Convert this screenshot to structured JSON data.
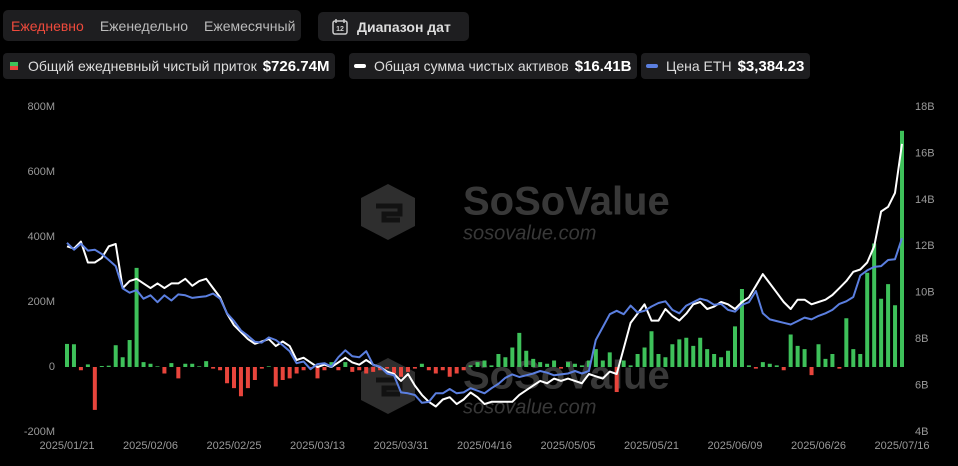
{
  "tabs": [
    "Ежедневно",
    "Еженедельно",
    "Ежемесячный"
  ],
  "active_tab": 0,
  "date_range_button": "Диапазон дат",
  "watermark": {
    "brand": "SoSoValue",
    "url": "sosovalue.com"
  },
  "chart_data": {
    "type": "bar",
    "categories": [
      "2025/01/21",
      null,
      null,
      null,
      null,
      null,
      null,
      null,
      null,
      null,
      null,
      null,
      "2025/02/06",
      null,
      null,
      null,
      null,
      null,
      null,
      null,
      null,
      null,
      null,
      null,
      "2025/02/25",
      null,
      null,
      null,
      null,
      null,
      null,
      null,
      null,
      null,
      null,
      null,
      "2025/03/13",
      null,
      null,
      null,
      null,
      null,
      null,
      null,
      null,
      null,
      null,
      null,
      "2025/03/31",
      null,
      null,
      null,
      null,
      null,
      null,
      null,
      null,
      null,
      null,
      null,
      "2025/04/16",
      null,
      null,
      null,
      null,
      null,
      null,
      null,
      null,
      null,
      null,
      null,
      "2025/05/05",
      null,
      null,
      null,
      null,
      null,
      null,
      null,
      null,
      null,
      null,
      null,
      "2025/05/21",
      null,
      null,
      null,
      null,
      null,
      null,
      null,
      null,
      null,
      null,
      null,
      "2025/06/09",
      null,
      null,
      null,
      null,
      null,
      null,
      null,
      null,
      null,
      null,
      null,
      "2025/06/26",
      null,
      null,
      null,
      null,
      null,
      null,
      null,
      null,
      null,
      null,
      null,
      "2025/07/16"
    ],
    "series": [
      {
        "name": "Общий ежедневный чистый приток",
        "type": "bar",
        "color": "#3ec15a",
        "negative_color": "#e8453c",
        "legend_value": "$726.74M",
        "values": [
          71,
          70,
          -10,
          8,
          -132,
          3,
          4,
          67,
          30,
          83,
          305,
          15,
          10,
          2,
          -20,
          12,
          -35,
          10,
          10,
          2,
          18,
          -5,
          -10,
          -50,
          -65,
          -90,
          -65,
          -40,
          -5,
          2,
          -60,
          -40,
          -35,
          -20,
          -10,
          -5,
          -35,
          -10,
          15,
          -10,
          15,
          -15,
          -10,
          -20,
          -15,
          -10,
          -5,
          -20,
          -30,
          -15,
          -5,
          10,
          -10,
          -20,
          -10,
          -30,
          -20,
          -10,
          5,
          15,
          20,
          5,
          40,
          30,
          60,
          105,
          50,
          25,
          15,
          10,
          20,
          -5,
          15,
          10,
          5,
          20,
          55,
          20,
          45,
          -77,
          20,
          5,
          40,
          60,
          110,
          40,
          30,
          70,
          85,
          90,
          65,
          90,
          55,
          40,
          30,
          50,
          125,
          240,
          5,
          -5,
          15,
          10,
          5,
          -10,
          100,
          65,
          55,
          -25,
          70,
          25,
          40,
          -5,
          150,
          55,
          40,
          290,
          380,
          210,
          255,
          190,
          726.74
        ]
      },
      {
        "name": "Общая сумма чистых активов",
        "type": "line",
        "axis": "y2",
        "color": "#ffffff",
        "legend_value": "$16.41B",
        "values": [
          12.0,
          11.9,
          12.2,
          11.3,
          11.3,
          11.5,
          12.0,
          12.1,
          10.2,
          10.5,
          10.6,
          10.4,
          10.2,
          10.4,
          10.2,
          10.4,
          10.4,
          10.6,
          10.3,
          10.5,
          10.6,
          10.2,
          9.8,
          9.1,
          8.6,
          8.3,
          8.0,
          7.8,
          7.9,
          8.0,
          7.7,
          7.9,
          7.7,
          7.1,
          7.2,
          7.0,
          6.8,
          6.9,
          6.8,
          7.0,
          7.2,
          7.0,
          6.9,
          7.1,
          6.9,
          6.8,
          6.6,
          6.5,
          6.2,
          6.5,
          6.0,
          5.6,
          5.3,
          5.1,
          5.4,
          5.5,
          5.2,
          5.4,
          5.7,
          5.5,
          5.2,
          5.3,
          5.3,
          5.3,
          5.3,
          5.6,
          5.8,
          6.0,
          6.2,
          6.1,
          6.3,
          6.2,
          6.3,
          6.2,
          6.1,
          6.5,
          6.4,
          6.3,
          6.6,
          6.5,
          7.6,
          8.7,
          9.1,
          9.5,
          8.8,
          8.8,
          9.3,
          9.0,
          8.8,
          9.1,
          9.5,
          9.6,
          9.3,
          9.4,
          9.6,
          9.5,
          9.3,
          9.6,
          9.8,
          10.3,
          10.8,
          10.4,
          10.0,
          9.6,
          9.3,
          9.7,
          9.7,
          9.5,
          9.6,
          9.7,
          9.9,
          10.2,
          10.5,
          10.9,
          11.0,
          11.3,
          12.0,
          13.5,
          13.7,
          14.3,
          16.41
        ]
      },
      {
        "name": "Цена ETH",
        "type": "line",
        "axis": "y3",
        "color": "#5b7fe0",
        "legend_value": "$3,384.23",
        "values": [
          3330,
          3250,
          3320,
          3240,
          3250,
          3200,
          3130,
          3060,
          2800,
          2750,
          2780,
          2680,
          2720,
          2640,
          2720,
          2660,
          2730,
          2720,
          2690,
          2700,
          2710,
          2740,
          2680,
          2510,
          2420,
          2310,
          2250,
          2180,
          2170,
          2230,
          2200,
          2140,
          2070,
          1930,
          1950,
          1860,
          1920,
          1930,
          1890,
          2000,
          2080,
          2010,
          2000,
          2070,
          1910,
          1890,
          1810,
          1790,
          1590,
          1580,
          1560,
          1470,
          1480,
          1580,
          1580,
          1630,
          1580,
          1590,
          1640,
          1610,
          1580,
          1640,
          1690,
          1760,
          1800,
          1770,
          1790,
          1810,
          1840,
          1820,
          1790,
          1800,
          1810,
          1840,
          1810,
          1840,
          2200,
          2350,
          2500,
          2540,
          2500,
          2600,
          2520,
          2540,
          2590,
          2630,
          2650,
          2550,
          2510,
          2600,
          2640,
          2680,
          2660,
          2610,
          2620,
          2550,
          2530,
          2610,
          2640,
          2770,
          2510,
          2440,
          2420,
          2400,
          2380,
          2420,
          2460,
          2440,
          2480,
          2510,
          2550,
          2620,
          2650,
          2700,
          2950,
          3010,
          3050,
          3060,
          3130,
          3140,
          3384.23
        ]
      }
    ],
    "ylim": [
      -200,
      800
    ],
    "yticks": [
      {
        "value": -200,
        "label": "-200M"
      },
      0,
      {
        "value": 200,
        "label": "200M"
      },
      {
        "value": 400,
        "label": "400M"
      },
      {
        "value": 600,
        "label": "600M"
      },
      {
        "value": 800,
        "label": "800M"
      }
    ],
    "y2lim": [
      4,
      18
    ],
    "y2ticks": [
      {
        "value": 4,
        "label": "4B"
      },
      {
        "value": 6,
        "label": "6B"
      },
      {
        "value": 8,
        "label": "8B"
      },
      {
        "value": 10,
        "label": "10B"
      },
      {
        "value": 12,
        "label": "12B"
      },
      {
        "value": 14,
        "label": "14B"
      },
      {
        "value": 16,
        "label": "16B"
      },
      {
        "value": 18,
        "label": "18B"
      }
    ],
    "y3lim": [
      1130,
      4910
    ],
    "grid": false
  }
}
